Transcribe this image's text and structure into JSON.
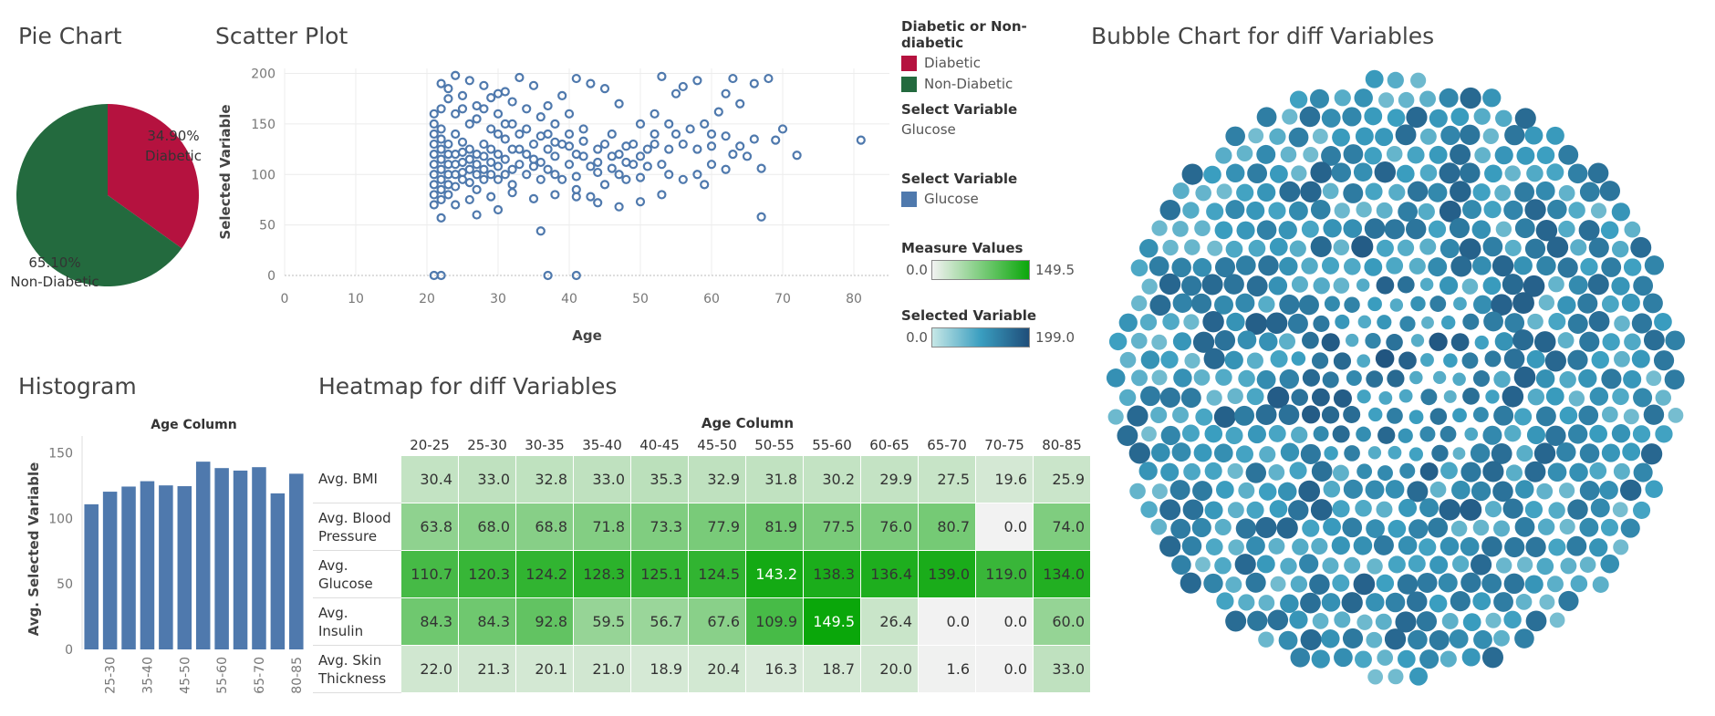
{
  "titles": {
    "pie": "Pie Chart",
    "scatter": "Scatter Plot",
    "bubble": "Bubble Chart for diff Variables",
    "histogram": "Histogram",
    "heatmap": "Heatmap for diff Variables"
  },
  "legend": {
    "group_title": "Diabetic or Non-diabetic",
    "diabetic": "Diabetic",
    "non_diabetic": "Non-Diabetic",
    "select_var_title": "Select Variable",
    "select_var_value": "Glucose",
    "select_var2_title": "Select Variable",
    "select_var2_value": "Glucose",
    "measure_title": "Measure Values",
    "measure_min": "0.0",
    "measure_max": "149.5",
    "selected_title": "Selected Variable",
    "selected_min": "0.0",
    "selected_max": "199.0"
  },
  "colors": {
    "diabetic": "#b5123f",
    "non_diabetic": "#236a3e",
    "scatter": "#4f79ad",
    "bar": "#4f79ad"
  },
  "chart_data": [
    {
      "type": "pie",
      "title": "Pie Chart",
      "slices": [
        {
          "label": "Diabetic",
          "value": 34.9,
          "display": "34.90%"
        },
        {
          "label": "Non-Diabetic",
          "value": 65.1,
          "display": "65.10%"
        }
      ]
    },
    {
      "type": "scatter",
      "title": "Scatter Plot",
      "xlabel": "Age",
      "ylabel": "Selected Variable",
      "xlim": [
        0,
        85
      ],
      "ylim": [
        0,
        205
      ],
      "xticks": [
        "0",
        "10",
        "20",
        "30",
        "40",
        "50",
        "60",
        "70",
        "80"
      ],
      "yticks": [
        "0",
        "50",
        "100",
        "150",
        "200"
      ],
      "points": [
        [
          21,
          0
        ],
        [
          22,
          0
        ],
        [
          37,
          0
        ],
        [
          41,
          0
        ],
        [
          81,
          134
        ],
        [
          72,
          119
        ],
        [
          67,
          58
        ],
        [
          36,
          44
        ],
        [
          22,
          57
        ],
        [
          68,
          195
        ],
        [
          66,
          190
        ],
        [
          70,
          145
        ],
        [
          69,
          134
        ],
        [
          60,
          140
        ],
        [
          63,
          195
        ],
        [
          58,
          193
        ],
        [
          56,
          187
        ],
        [
          53,
          197
        ],
        [
          55,
          180
        ],
        [
          62,
          180
        ],
        [
          64,
          170
        ],
        [
          61,
          162
        ],
        [
          59,
          150
        ],
        [
          57,
          145
        ],
        [
          52,
          130
        ],
        [
          54,
          125
        ],
        [
          63,
          120
        ],
        [
          65,
          118
        ],
        [
          67,
          106
        ],
        [
          60,
          110
        ],
        [
          62,
          105
        ],
        [
          58,
          100
        ],
        [
          56,
          95
        ],
        [
          59,
          90
        ],
        [
          50,
          97
        ],
        [
          51,
          108
        ],
        [
          48,
          112
        ],
        [
          46,
          118
        ],
        [
          44,
          125
        ],
        [
          42,
          133
        ],
        [
          40,
          140
        ],
        [
          38,
          150
        ],
        [
          36,
          157
        ],
        [
          34,
          165
        ],
        [
          32,
          172
        ],
        [
          30,
          180
        ],
        [
          28,
          188
        ],
        [
          26,
          193
        ],
        [
          24,
          198
        ],
        [
          22,
          190
        ],
        [
          23,
          175
        ],
        [
          25,
          165
        ],
        [
          27,
          155
        ],
        [
          29,
          145
        ],
        [
          31,
          135
        ],
        [
          33,
          125
        ],
        [
          35,
          115
        ],
        [
          37,
          105
        ],
        [
          39,
          95
        ],
        [
          41,
          85
        ],
        [
          43,
          78
        ],
        [
          45,
          90
        ],
        [
          47,
          100
        ],
        [
          49,
          110
        ],
        [
          21,
          100
        ],
        [
          21,
          110
        ],
        [
          21,
          120
        ],
        [
          21,
          130
        ],
        [
          21,
          140
        ],
        [
          21,
          90
        ],
        [
          21,
          80
        ],
        [
          21,
          70
        ],
        [
          22,
          95
        ],
        [
          22,
          105
        ],
        [
          22,
          115
        ],
        [
          22,
          125
        ],
        [
          22,
          135
        ],
        [
          22,
          145
        ],
        [
          22,
          85
        ],
        [
          22,
          75
        ],
        [
          23,
          100
        ],
        [
          23,
          110
        ],
        [
          23,
          120
        ],
        [
          23,
          130
        ],
        [
          23,
          90
        ],
        [
          23,
          80
        ],
        [
          24,
          100
        ],
        [
          24,
          110
        ],
        [
          24,
          120
        ],
        [
          24,
          140
        ],
        [
          24,
          88
        ],
        [
          25,
          102
        ],
        [
          25,
          112
        ],
        [
          25,
          122
        ],
        [
          25,
          132
        ],
        [
          25,
          95
        ],
        [
          26,
          105
        ],
        [
          26,
          115
        ],
        [
          26,
          125
        ],
        [
          26,
          92
        ],
        [
          27,
          100
        ],
        [
          27,
          110
        ],
        [
          27,
          120
        ],
        [
          27,
          85
        ],
        [
          28,
          105
        ],
        [
          28,
          118
        ],
        [
          28,
          130
        ],
        [
          28,
          95
        ],
        [
          29,
          100
        ],
        [
          29,
          112
        ],
        [
          29,
          125
        ],
        [
          30,
          108
        ],
        [
          30,
          120
        ],
        [
          30,
          140
        ],
        [
          30,
          95
        ],
        [
          31,
          100
        ],
        [
          31,
          115
        ],
        [
          31,
          150
        ],
        [
          32,
          105
        ],
        [
          32,
          125
        ],
        [
          32,
          90
        ],
        [
          33,
          110
        ],
        [
          33,
          140
        ],
        [
          34,
          100
        ],
        [
          34,
          120
        ],
        [
          35,
          108
        ],
        [
          35,
          130
        ],
        [
          36,
          112
        ],
        [
          36,
          95
        ],
        [
          37,
          125
        ],
        [
          37,
          140
        ],
        [
          38,
          100
        ],
        [
          38,
          118
        ],
        [
          39,
          130
        ],
        [
          40,
          110
        ],
        [
          40,
          160
        ],
        [
          41,
          120
        ],
        [
          41,
          98
        ],
        [
          42,
          145
        ],
        [
          43,
          108
        ],
        [
          44,
          102
        ],
        [
          45,
          130
        ],
        [
          46,
          140
        ],
        [
          47,
          120
        ],
        [
          48,
          95
        ],
        [
          49,
          130
        ],
        [
          50,
          150
        ],
        [
          51,
          125
        ],
        [
          52,
          160
        ],
        [
          53,
          110
        ],
        [
          54,
          100
        ],
        [
          55,
          140
        ],
        [
          47,
          170
        ],
        [
          45,
          185
        ],
        [
          43,
          190
        ],
        [
          41,
          195
        ],
        [
          39,
          178
        ],
        [
          37,
          168
        ],
        [
          35,
          188
        ],
        [
          33,
          196
        ],
        [
          31,
          182
        ],
        [
          29,
          176
        ],
        [
          27,
          168
        ],
        [
          25,
          178
        ],
        [
          23,
          185
        ],
        [
          21,
          160
        ],
        [
          21,
          150
        ],
        [
          22,
          165
        ],
        [
          24,
          160
        ],
        [
          26,
          150
        ],
        [
          28,
          165
        ],
        [
          30,
          160
        ],
        [
          32,
          150
        ],
        [
          34,
          145
        ],
        [
          36,
          138
        ],
        [
          38,
          132
        ],
        [
          40,
          128
        ],
        [
          42,
          118
        ],
        [
          44,
          112
        ],
        [
          46,
          106
        ],
        [
          48,
          128
        ],
        [
          50,
          118
        ],
        [
          52,
          140
        ],
        [
          54,
          150
        ],
        [
          56,
          130
        ],
        [
          58,
          125
        ],
        [
          60,
          128
        ],
        [
          62,
          138
        ],
        [
          64,
          128
        ],
        [
          66,
          135
        ],
        [
          53,
          80
        ],
        [
          50,
          73
        ],
        [
          47,
          68
        ],
        [
          44,
          72
        ],
        [
          41,
          78
        ],
        [
          38,
          80
        ],
        [
          35,
          76
        ],
        [
          32,
          82
        ],
        [
          29,
          78
        ],
        [
          26,
          75
        ],
        [
          24,
          70
        ],
        [
          27,
          60
        ],
        [
          30,
          65
        ]
      ]
    },
    {
      "type": "bar",
      "title": "Histogram",
      "xlabel": "Age Column",
      "ylabel": "Avg. Selected Variable",
      "ylim": [
        0,
        160
      ],
      "yticks": [
        "0",
        "50",
        "100",
        "150"
      ],
      "categories": [
        "20-25",
        "25-30",
        "30-35",
        "35-40",
        "40-45",
        "45-50",
        "50-55",
        "55-60",
        "60-65",
        "65-70",
        "70-75",
        "80-85"
      ],
      "shown_tick_labels": [
        "25-30",
        "35-40",
        "45-50",
        "55-60",
        "65-70",
        "80-85"
      ],
      "values": [
        110.7,
        120.3,
        124.2,
        128.3,
        125.1,
        124.5,
        143.2,
        138.3,
        136.4,
        139.0,
        119.0,
        134.0
      ]
    },
    {
      "type": "heatmap",
      "title": "Heatmap for diff Variables",
      "xlabel": "Age Column",
      "columns": [
        "20-25",
        "25-30",
        "30-35",
        "35-40",
        "40-45",
        "45-50",
        "50-55",
        "55-60",
        "60-65",
        "65-70",
        "70-75",
        "80-85"
      ],
      "range": [
        0.0,
        149.5
      ],
      "rows": [
        {
          "label": "Avg. BMI",
          "values": [
            "30.4",
            "33.0",
            "32.8",
            "33.0",
            "35.3",
            "32.9",
            "31.8",
            "30.2",
            "29.9",
            "27.5",
            "19.6",
            "25.9"
          ]
        },
        {
          "label": "Avg. Blood Pressure",
          "values": [
            "63.8",
            "68.0",
            "68.8",
            "71.8",
            "73.3",
            "77.9",
            "81.9",
            "77.5",
            "76.0",
            "80.7",
            "0.0",
            "74.0"
          ]
        },
        {
          "label": "Avg. Glucose",
          "values": [
            "110.7",
            "120.3",
            "124.2",
            "128.3",
            "125.1",
            "124.5",
            "143.2",
            "138.3",
            "136.4",
            "139.0",
            "119.0",
            "134.0"
          ]
        },
        {
          "label": "Avg. Insulin",
          "values": [
            "84.3",
            "84.3",
            "92.8",
            "59.5",
            "56.7",
            "67.6",
            "109.9",
            "149.5",
            "26.4",
            "0.0",
            "0.0",
            "60.0"
          ]
        },
        {
          "label": "Avg. Skin Thickness",
          "values": [
            "22.0",
            "21.3",
            "20.1",
            "21.0",
            "18.9",
            "20.4",
            "16.3",
            "18.7",
            "20.0",
            "1.6",
            "0.0",
            "33.0"
          ]
        }
      ]
    },
    {
      "type": "scatter",
      "title": "Bubble Chart for diff Variables",
      "color_range": [
        0.0,
        199.0
      ],
      "bubble_count": 768
    }
  ]
}
